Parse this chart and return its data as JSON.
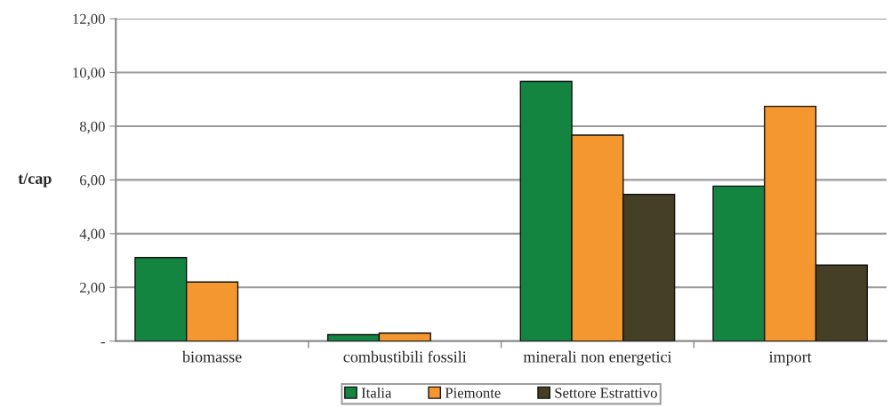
{
  "chart_data": {
    "type": "bar",
    "ylabel": "t/cap",
    "categories": [
      "biomasse",
      "combustibili fossili",
      "minerali non energetici",
      "import"
    ],
    "series": [
      {
        "name": "Italia",
        "color": "#138540",
        "values": [
          3.11,
          0.24,
          9.67,
          5.77
        ]
      },
      {
        "name": "Piemonte",
        "color": "#f4972e",
        "values": [
          2.2,
          0.3,
          7.67,
          8.74
        ]
      },
      {
        "name": "Settore Estrattivo",
        "color": "#453f25",
        "values": [
          null,
          null,
          5.46,
          2.83
        ]
      }
    ],
    "ylim": [
      0,
      12
    ],
    "yticks": [
      {
        "value": 0,
        "label": "-"
      },
      {
        "value": 2,
        "label": "2,00"
      },
      {
        "value": 4,
        "label": "4,00"
      },
      {
        "value": 6,
        "label": "6,00"
      },
      {
        "value": 8,
        "label": "8,00"
      },
      {
        "value": 10,
        "label": "10,00"
      },
      {
        "value": 12,
        "label": "12,00"
      }
    ],
    "grid": "y",
    "legend": "bottom"
  }
}
